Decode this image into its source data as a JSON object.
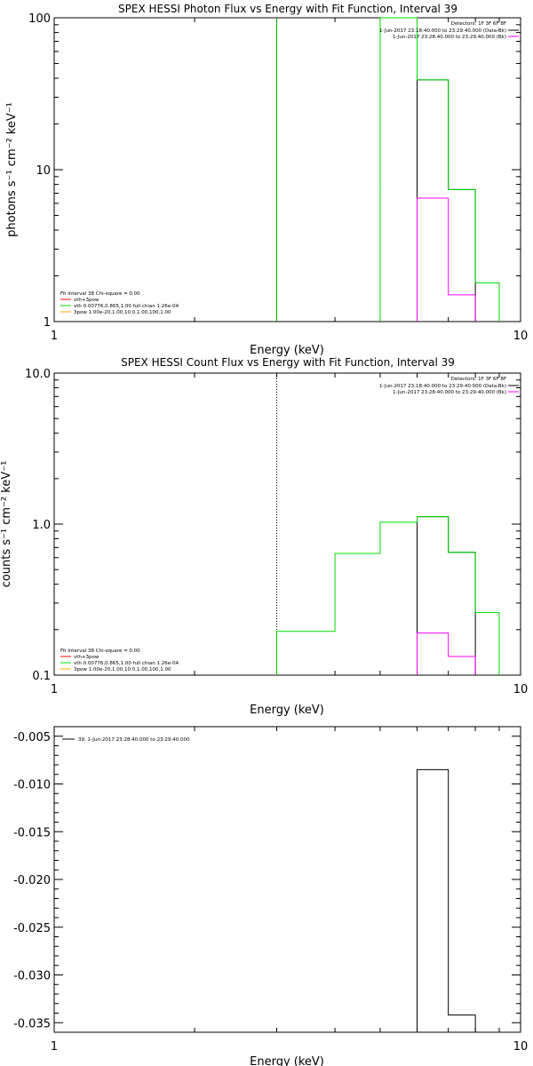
{
  "chart_data": [
    {
      "type": "line",
      "title": "SPEX HESSI Photon Flux vs Energy with Fit Function, Interval 39",
      "xlabel": "Energy (keV)",
      "ylabel": "photons s⁻¹ cm⁻² keV⁻¹",
      "xscale": "log",
      "yscale": "log",
      "xlim": [
        1,
        10
      ],
      "ylim": [
        1,
        100
      ],
      "xticks": [
        {
          "v": 1,
          "label": "1"
        },
        {
          "v": 10,
          "label": "10"
        }
      ],
      "yticks": [
        {
          "v": 1,
          "label": "1"
        },
        {
          "v": 10,
          "label": "10"
        },
        {
          "v": 100,
          "label": "100"
        }
      ],
      "legend_right": {
        "title": "Detectors: 1F 3F 6F 8F",
        "items": [
          {
            "label": "1-Jun-2017 23:18:40.000 to 23:29:40.000 (Data-Bk)",
            "color": "#000000"
          },
          {
            "label": "1-Jun-2017 23:28:40.000 to 23:29:40.000 (Bk)",
            "color": "#ff00ff"
          }
        ]
      },
      "legend_left": {
        "title": "Fit Interval 38   Chi-square = 0.00",
        "items": [
          {
            "label": "vth+3pow",
            "color": "#ff0000"
          },
          {
            "label": "vth 0.00776,0.865,1.00  full chian 1.26e-04",
            "color": "#00dd00"
          },
          {
            "label": "3pow 1.00e-20,1.00,10.0,1.00,100,1.00",
            "color": "#ffaa00"
          }
        ]
      },
      "vline": {
        "x": 3.0,
        "color": "#00aa00"
      },
      "series": [
        {
          "name": "1-Jun-2017 23:18:40.000 to 23:29:40.000 (Data-Bk)",
          "color": "#000000",
          "edges": [
            6.0,
            7.0,
            8.0
          ],
          "values": [
            39,
            7.4
          ]
        },
        {
          "name": "1-Jun-2017 23:28:40.000 to 23:29:40.000 (Bk)",
          "color": "#ff00ff",
          "edges": [
            6.0,
            7.0,
            8.0
          ],
          "values": [
            6.5,
            1.5
          ]
        },
        {
          "name": "vth+3pow",
          "color": "#00dd00",
          "edges": [
            5.0,
            6.0,
            7.0,
            8.0,
            9.0
          ],
          "values": [
            100,
            39,
            7.4,
            1.8
          ]
        }
      ]
    },
    {
      "type": "line",
      "title": "SPEX HESSI Count Flux vs Energy with Fit Function, Interval 39",
      "xlabel": "Energy (keV)",
      "ylabel": "counts s⁻¹ cm⁻² keV⁻¹",
      "xscale": "log",
      "yscale": "log",
      "xlim": [
        1,
        10
      ],
      "ylim": [
        0.1,
        10
      ],
      "xticks": [
        {
          "v": 1,
          "label": "1"
        },
        {
          "v": 10,
          "label": "10"
        }
      ],
      "yticks": [
        {
          "v": 0.1,
          "label": "0.1"
        },
        {
          "v": 1,
          "label": "1.0"
        },
        {
          "v": 10,
          "label": "10.0"
        }
      ],
      "legend_right": {
        "title": "Detectors: 1F 3F 6F 8F",
        "items": [
          {
            "label": "1-Jun-2017 23:18:40.000 to 23:29:40.000 (Data-Bk)",
            "color": "#000000"
          },
          {
            "label": "1-Jun-2017 23:28:40.000 to 23:29:40.000 (Bk)",
            "color": "#ff00ff"
          }
        ]
      },
      "legend_left": {
        "title": "Fit Interval 38   Chi-square = 0.00",
        "items": [
          {
            "label": "vth+3pow",
            "color": "#ff0000"
          },
          {
            "label": "vth 0.00776,0.865,1.00  full chian 1.26e-04",
            "color": "#00dd00"
          },
          {
            "label": "3pow 1.00e-20,1.00,10.0,1.00,100,1.00",
            "color": "#ffaa00"
          }
        ]
      },
      "vline": {
        "x": 3.0,
        "color": "#000000",
        "dotted": true
      },
      "series": [
        {
          "name": "1-Jun-2017 23:18:40.000 to 23:29:40.000 (Data-Bk)",
          "color": "#000000",
          "edges": [
            6.0,
            7.0,
            8.0
          ],
          "values": [
            1.12,
            0.65
          ]
        },
        {
          "name": "1-Jun-2017 23:28:40.000 to 23:29:40.000 (Bk)",
          "color": "#ff00ff",
          "edges": [
            6.0,
            7.0,
            8.0
          ],
          "values": [
            0.19,
            0.133
          ]
        },
        {
          "name": "vth+3pow",
          "color": "#00dd00",
          "edges": [
            3.0,
            4.0,
            5.0,
            6.0,
            7.0,
            8.0,
            9.0
          ],
          "values": [
            0.195,
            0.64,
            1.03,
            1.12,
            0.65,
            0.26
          ]
        }
      ]
    },
    {
      "type": "line",
      "title": "",
      "xlabel": "Energy (keV)",
      "ylabel": "",
      "xscale": "log",
      "yscale": "linear",
      "xlim": [
        1,
        10
      ],
      "ylim": [
        -0.036,
        -0.004
      ],
      "xticks": [
        {
          "v": 1,
          "label": "1"
        },
        {
          "v": 10,
          "label": "10"
        }
      ],
      "yticks": [
        {
          "v": -0.005,
          "label": "-0.005"
        },
        {
          "v": -0.01,
          "label": "-0.010"
        },
        {
          "v": -0.015,
          "label": "-0.015"
        },
        {
          "v": -0.02,
          "label": "-0.020"
        },
        {
          "v": -0.025,
          "label": "-0.025"
        },
        {
          "v": -0.03,
          "label": "-0.030"
        },
        {
          "v": -0.035,
          "label": "-0.035"
        }
      ],
      "legend_left": {
        "title": "",
        "items": [
          {
            "label": "39,  1-Jun-2017 23:28:40.000 to 23:29:40.000",
            "color": "#000000"
          }
        ]
      },
      "series": [
        {
          "name": "39,  1-Jun-2017 23:28:40.000 to 23:29:40.000",
          "color": "#000000",
          "edges": [
            6.0,
            7.0,
            8.0
          ],
          "values": [
            -0.0085,
            -0.0342
          ],
          "baseline": -0.036
        }
      ]
    }
  ]
}
